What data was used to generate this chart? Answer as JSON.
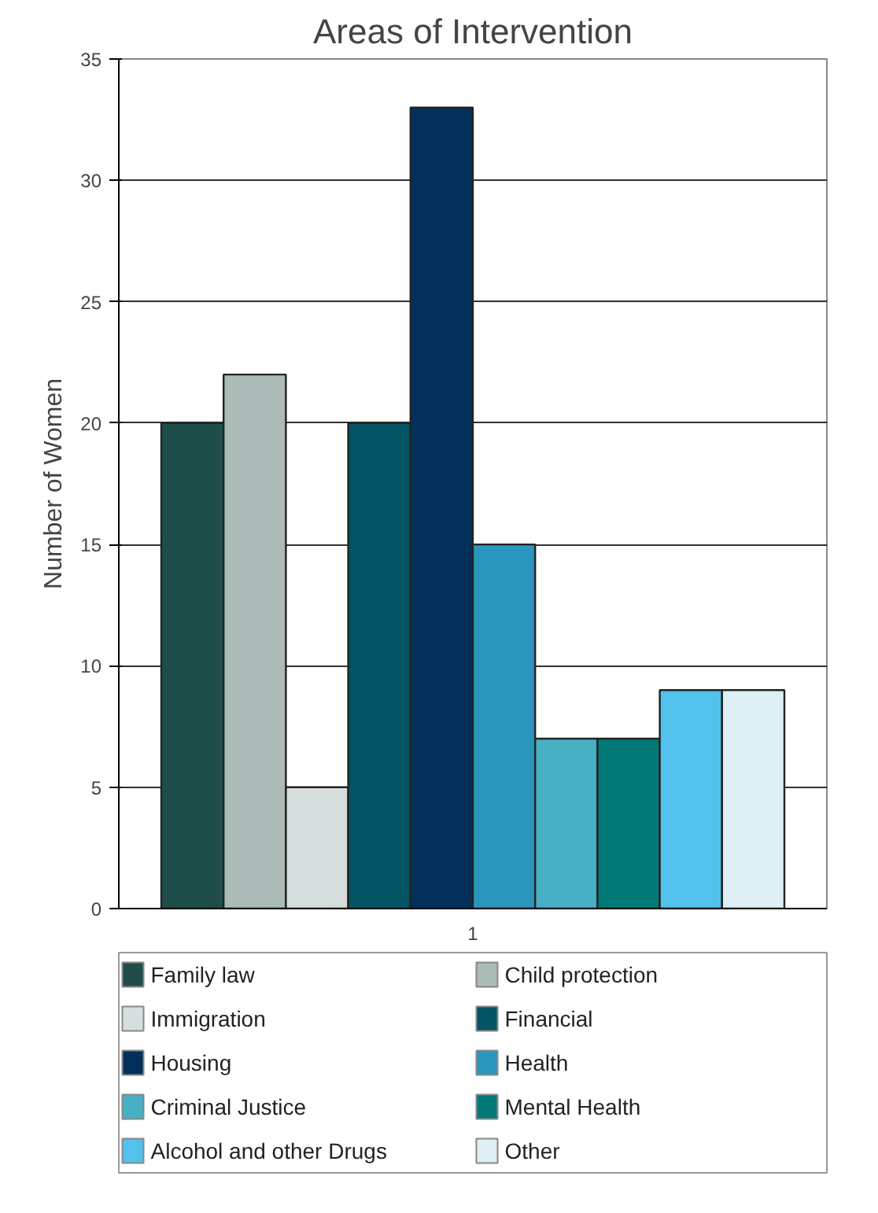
{
  "chart_data": {
    "type": "bar",
    "title": "Areas of Intervention",
    "ylabel": "Number of Women",
    "categories": [
      "1"
    ],
    "series": [
      {
        "name": "Family law",
        "color": "#1f4e4a",
        "values": [
          20
        ]
      },
      {
        "name": "Child protection",
        "color": "#abbbb7",
        "values": [
          22
        ]
      },
      {
        "name": "Immigration",
        "color": "#d7dfde",
        "values": [
          5
        ]
      },
      {
        "name": "Financial",
        "color": "#035464",
        "values": [
          20
        ]
      },
      {
        "name": "Housing",
        "color": "#03305a",
        "values": [
          33
        ]
      },
      {
        "name": "Health",
        "color": "#2a96bd",
        "values": [
          15
        ]
      },
      {
        "name": "Criminal Justice",
        "color": "#48b0c4",
        "values": [
          7
        ]
      },
      {
        "name": "Mental Health",
        "color": "#017a77",
        "values": [
          7
        ]
      },
      {
        "name": "Alcohol and other Drugs",
        "color": "#52c1ec",
        "values": [
          9
        ]
      },
      {
        "name": "Other",
        "color": "#ddeef5",
        "values": [
          9
        ]
      }
    ],
    "ylim": [
      0,
      35
    ],
    "yticks": [
      0,
      5,
      10,
      15,
      20,
      25,
      30,
      35
    ],
    "grid": "y",
    "legend": "bottom"
  }
}
